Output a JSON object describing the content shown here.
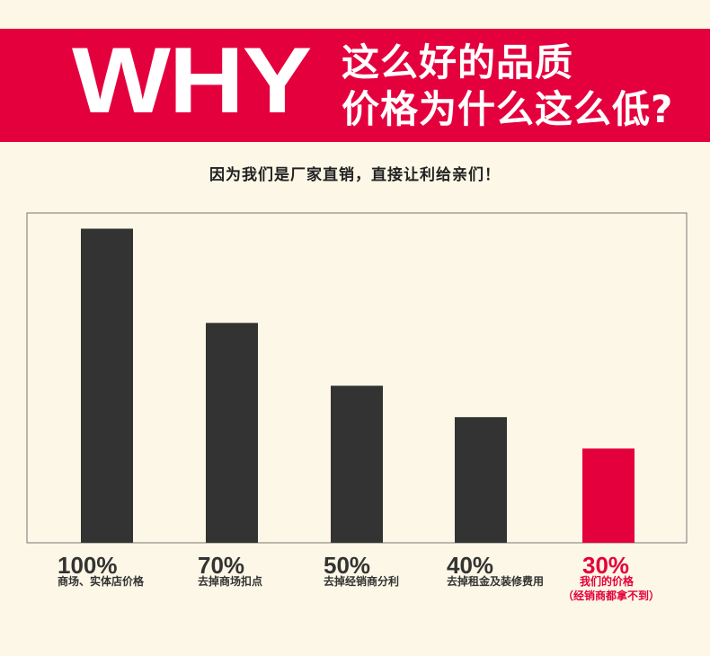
{
  "banner": {
    "big_text": "WHY",
    "line1": "这么好的品质",
    "line2": "价格为什么这么低?"
  },
  "subtitle": "因为我们是厂家直销，直接让利给亲们！",
  "colors": {
    "banner": "#e4003d",
    "bar": "#333333",
    "highlight": "#e4003d",
    "background": "#fcf7e6"
  },
  "chart_data": {
    "type": "bar",
    "title": "",
    "xlabel": "",
    "ylabel": "",
    "ylim": [
      0,
      105
    ],
    "grid": false,
    "legend": "none",
    "categories": [
      "商场、实体店价格",
      "去掉商场扣点",
      "去掉经销商分利",
      "去掉租金及装修费用",
      "我们的价格"
    ],
    "value_labels": [
      "100%",
      "70%",
      "50%",
      "40%",
      "30%"
    ],
    "values": [
      100,
      70,
      50,
      40,
      30
    ],
    "highlight_index": 4,
    "extra_note": "（经销商都拿不到）"
  }
}
